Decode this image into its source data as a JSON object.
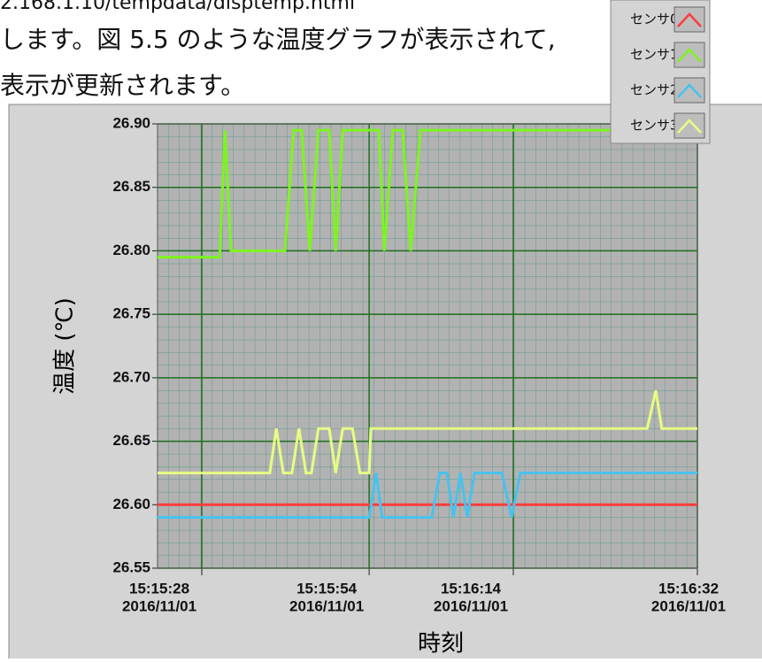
{
  "document": {
    "lines": [
      "2.168.1.10/tempdata/disptemp.html",
      "します。図 5.5 のような温度グラフが表示されて,",
      "表示が更新されます。"
    ]
  },
  "chart_data": {
    "type": "line",
    "xlabel": "時刻",
    "ylabel": "温度 (℃)",
    "xlim": [
      0,
      100
    ],
    "ylim": [
      26.55,
      26.9
    ],
    "yticks": [
      {
        "value": 26.55,
        "label": "26.55"
      },
      {
        "value": 26.6,
        "label": "26.60"
      },
      {
        "value": 26.65,
        "label": "26.65"
      },
      {
        "value": 26.7,
        "label": "26.70"
      },
      {
        "value": 26.75,
        "label": "26.75"
      },
      {
        "value": 26.8,
        "label": "26.80"
      },
      {
        "value": 26.85,
        "label": "26.85"
      },
      {
        "value": 26.9,
        "label": "26.90"
      }
    ],
    "xticks": [
      {
        "value": 8.2,
        "label": [
          "15:15:28",
          "2016/11/01"
        ]
      },
      {
        "value": 39.2,
        "label": [
          "15:15:54",
          "2016/11/01"
        ]
      },
      {
        "value": 65.9,
        "label": [
          "15:16:14",
          "2016/11/01"
        ]
      },
      {
        "value": 100,
        "label": [
          "15:16:32",
          "2016/11/01"
        ]
      }
    ],
    "grid": true,
    "legend": "top-right",
    "series": [
      {
        "name": "センサ0",
        "color": "#ff3c3c",
        "x": [
          0,
          100
        ],
        "values": [
          26.6,
          26.6
        ]
      },
      {
        "name": "センサ1",
        "color": "#7cf51e",
        "x": [
          0,
          11.5,
          12.5,
          13.6,
          23.6,
          25.2,
          26.7,
          28.2,
          29.8,
          31.8,
          33.0,
          34.3,
          41.0,
          42.0,
          43.6,
          45.4,
          46.9,
          48.7,
          100
        ],
        "values": [
          26.795,
          26.795,
          26.895,
          26.8,
          26.8,
          26.895,
          26.895,
          26.8,
          26.895,
          26.895,
          26.8,
          26.895,
          26.895,
          26.8,
          26.895,
          26.895,
          26.8,
          26.895,
          26.895
        ]
      },
      {
        "name": "センサ2",
        "color": "#46c3f0",
        "x": [
          0,
          39.2,
          40.5,
          41.6,
          50.8,
          52.3,
          53.6,
          54.8,
          56.1,
          57.4,
          58.7,
          63.8,
          65.6,
          67.2,
          100
        ],
        "values": [
          26.59,
          26.59,
          26.625,
          26.59,
          26.59,
          26.625,
          26.625,
          26.59,
          26.625,
          26.59,
          26.625,
          26.625,
          26.59,
          26.625,
          26.625
        ]
      },
      {
        "name": "センサ3",
        "color": "#e6ff82",
        "x": [
          0,
          20.8,
          22.0,
          23.3,
          24.9,
          26.2,
          27.5,
          28.5,
          29.8,
          31.8,
          33.0,
          34.3,
          36.1,
          37.5,
          39.2,
          39.5,
          90.7,
          92.3,
          93.4,
          100
        ],
        "values": [
          26.625,
          26.625,
          26.66,
          26.625,
          26.625,
          26.66,
          26.625,
          26.625,
          26.66,
          26.66,
          26.625,
          26.66,
          26.66,
          26.625,
          26.625,
          26.66,
          26.66,
          26.69,
          26.66,
          26.66
        ]
      }
    ]
  }
}
